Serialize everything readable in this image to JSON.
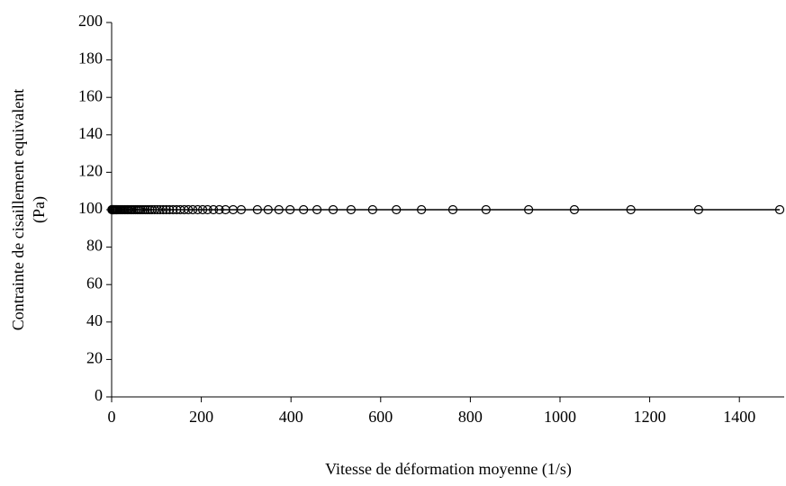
{
  "chart_data": {
    "type": "scatter",
    "x_label": "Vitesse de déformation moyenne (1/s)",
    "y_label": [
      "Contrainte de cisaillement equivalent",
      "(Pa)"
    ],
    "x": [
      0.5,
      1,
      2,
      3,
      4,
      5,
      7,
      9,
      11,
      13,
      15,
      18,
      20,
      23,
      26,
      29,
      32,
      35,
      38,
      42,
      45,
      49,
      53,
      57,
      61,
      65,
      70,
      75,
      80,
      85,
      90,
      96,
      102,
      108,
      115,
      122,
      129,
      137,
      145,
      153,
      162,
      171,
      181,
      192,
      203,
      214,
      227,
      240,
      254,
      271,
      289,
      325,
      349,
      373,
      398,
      428,
      458,
      494,
      534,
      582,
      635,
      691,
      761,
      835,
      930,
      1032,
      1158,
      1309,
      1490
    ],
    "values": [
      100,
      100,
      100,
      100,
      100,
      100,
      100,
      100,
      100,
      100,
      100,
      100,
      100,
      100,
      100,
      100,
      100,
      100,
      100,
      100,
      100,
      100,
      100,
      100,
      100,
      100,
      100,
      100,
      100,
      100,
      100,
      100,
      100,
      100,
      100,
      100,
      100,
      100,
      100,
      100,
      100,
      100,
      100,
      100,
      100,
      100,
      100,
      100,
      100,
      100,
      100,
      100,
      100,
      100,
      100,
      100,
      100,
      100,
      100,
      100,
      100,
      100,
      100,
      100,
      100,
      100,
      100,
      100,
      100
    ],
    "color": "#000000",
    "xlim": [
      0,
      1500
    ],
    "xticks": [
      0,
      200,
      400,
      600,
      800,
      1000,
      1200,
      1400
    ],
    "ylim": [
      0,
      200
    ],
    "yticks": [
      0,
      20,
      40,
      60,
      80,
      100,
      120,
      140,
      160,
      180,
      200
    ]
  }
}
